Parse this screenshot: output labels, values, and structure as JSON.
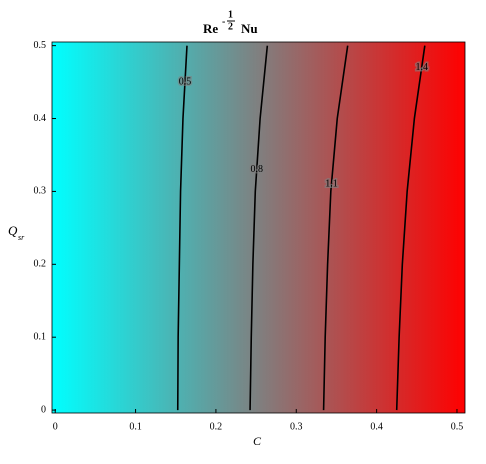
{
  "chart_data": {
    "type": "contour",
    "title": {
      "base": "Re",
      "exponent_sign": "-",
      "exponent_numerator": "1",
      "exponent_denominator": "2",
      "tail": "Nu"
    },
    "x_label": "C",
    "y_label": {
      "main": "Q",
      "subscript": "sr"
    },
    "colormap": [
      "#00ffff",
      "#ff0000"
    ],
    "xlim": [
      -0.004,
      0.51
    ],
    "ylim": [
      -0.004,
      0.505
    ],
    "xticks": [
      0,
      0.1,
      0.2,
      0.3,
      0.4,
      0.5
    ],
    "yticks": [
      0,
      0.1,
      0.2,
      0.3,
      0.4,
      0.5
    ],
    "contours": [
      {
        "level": 0.5,
        "x": [
          0.1525,
          0.153,
          0.1545,
          0.156,
          0.159,
          0.164
        ],
        "y": [
          0,
          0.1,
          0.2,
          0.3,
          0.4,
          0.5
        ]
      },
      {
        "level": 0.8,
        "x": [
          0.2425,
          0.244,
          0.246,
          0.249,
          0.255,
          0.264
        ],
        "y": [
          0,
          0.1,
          0.2,
          0.3,
          0.4,
          0.5
        ]
      },
      {
        "level": 1.1,
        "x": [
          0.334,
          0.336,
          0.339,
          0.343,
          0.351,
          0.364
        ],
        "y": [
          0,
          0.1,
          0.2,
          0.3,
          0.4,
          0.5
        ]
      },
      {
        "level": 1.4,
        "x": [
          0.425,
          0.428,
          0.432,
          0.438,
          0.447,
          0.46
        ],
        "y": [
          0,
          0.1,
          0.2,
          0.3,
          0.4,
          0.5
        ]
      }
    ],
    "line_color": "#000000"
  }
}
